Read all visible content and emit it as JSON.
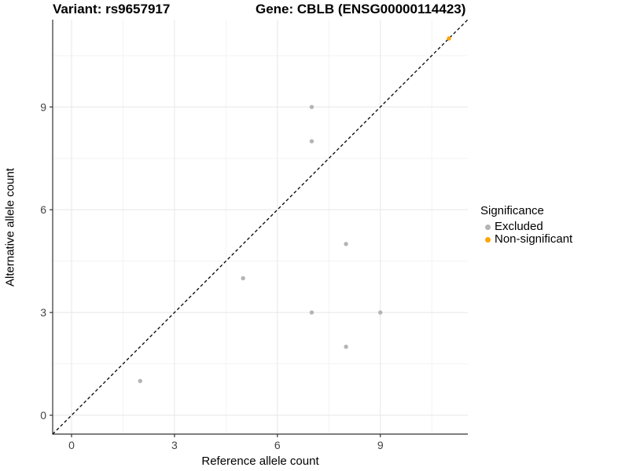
{
  "header": {
    "variant_title": "Variant: rs9657917",
    "gene_title": "Gene: CBLB (ENSG00000114423)"
  },
  "chart_data": {
    "type": "scatter",
    "title_left": "Variant: rs9657917",
    "title_right": "Gene: CBLB (ENSG00000114423)",
    "xlabel": "Reference allele count",
    "ylabel": "Alternative allele count",
    "xlim": [
      -0.55,
      11.55
    ],
    "ylim": [
      -0.55,
      11.55
    ],
    "xticks": [
      0,
      3,
      6,
      9
    ],
    "yticks": [
      0,
      3,
      6,
      9
    ],
    "minor_gridlines_x": [
      1.5,
      4.5,
      7.5,
      10.5
    ],
    "minor_gridlines_y": [
      1.5,
      4.5,
      7.5,
      10.5
    ],
    "grid": true,
    "reference_line": {
      "slope": 1,
      "intercept": 0,
      "style": "dashed",
      "color": "#000000"
    },
    "series": [
      {
        "name": "Excluded",
        "color": "#B4B4B4",
        "points": [
          [
            2,
            1
          ],
          [
            5,
            4
          ],
          [
            7,
            3
          ],
          [
            7,
            8
          ],
          [
            7,
            9
          ],
          [
            8,
            2
          ],
          [
            8,
            5
          ],
          [
            9,
            3
          ]
        ]
      },
      {
        "name": "Non-significant",
        "color": "#FFA500",
        "points": [
          [
            11,
            11
          ]
        ]
      }
    ],
    "legend": {
      "title": "Significance",
      "position": "right",
      "items": [
        {
          "label": "Excluded",
          "color": "#B4B4B4"
        },
        {
          "label": "Non-significant",
          "color": "#FFA500"
        }
      ]
    },
    "colors": {
      "grid_major": "#E7E7E7",
      "grid_minor": "#F3F3F3",
      "axis_line": "#333333",
      "tick_mark": "#333333",
      "tick_label": "#444444"
    }
  }
}
